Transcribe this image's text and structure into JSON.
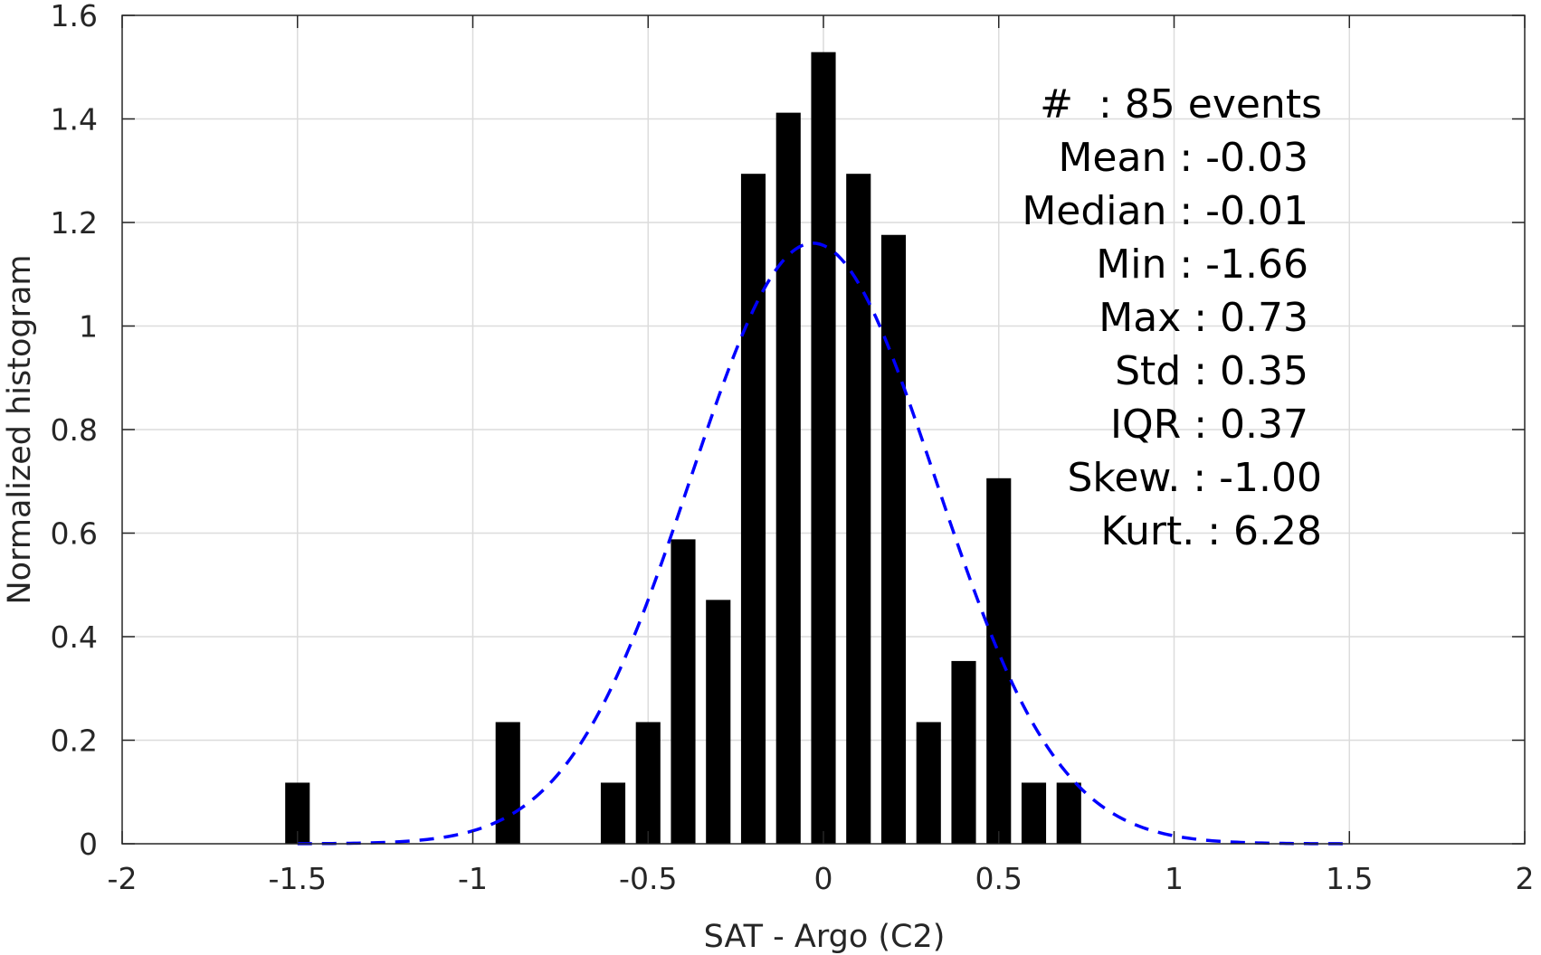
{
  "chart_data": {
    "type": "bar",
    "xlabel": "SAT - Argo (C2)",
    "ylabel": "Normalized histogram",
    "xlim": [
      -2,
      2
    ],
    "ylim": [
      0,
      1.6
    ],
    "xticks": [
      -2,
      -1.5,
      -1,
      -0.5,
      0,
      0.5,
      1,
      1.5,
      2
    ],
    "xtick_labels": [
      "-2",
      "-1.5",
      "-1",
      "-0.5",
      "0",
      "0.5",
      "1",
      "1.5",
      "2"
    ],
    "yticks": [
      0,
      0.2,
      0.4,
      0.6,
      0.8,
      1,
      1.2,
      1.4,
      1.6
    ],
    "ytick_labels": [
      "0",
      "0.2",
      "0.4",
      "0.6",
      "0.8",
      "1",
      "1.2",
      "1.4",
      "1.6"
    ],
    "grid": true,
    "bar_width": 0.07,
    "bars": [
      {
        "x": -1.5,
        "value": 0.118
      },
      {
        "x": -0.9,
        "value": 0.235
      },
      {
        "x": -0.6,
        "value": 0.118
      },
      {
        "x": -0.5,
        "value": 0.235
      },
      {
        "x": -0.4,
        "value": 0.588
      },
      {
        "x": -0.3,
        "value": 0.471
      },
      {
        "x": -0.2,
        "value": 1.294
      },
      {
        "x": -0.1,
        "value": 1.412
      },
      {
        "x": 0.0,
        "value": 1.529
      },
      {
        "x": 0.1,
        "value": 1.294
      },
      {
        "x": 0.2,
        "value": 1.176
      },
      {
        "x": 0.3,
        "value": 0.235
      },
      {
        "x": 0.4,
        "value": 0.353
      },
      {
        "x": 0.5,
        "value": 0.706
      },
      {
        "x": 0.6,
        "value": 0.118
      },
      {
        "x": 0.7,
        "value": 0.118
      }
    ],
    "fit_curve": {
      "type": "normal",
      "mean": -0.03,
      "std": 0.35,
      "peak": 1.16,
      "range": [
        -1.5,
        1.5
      ],
      "style": "dashed",
      "color": "#0000ff"
    },
    "bar_color": "#000000",
    "annotations": [
      "#  : 85 events",
      "Mean : -0.03",
      "Median : -0.01",
      "Min : -1.66",
      "Max : 0.73",
      "Std : 0.35",
      "IQR : 0.37",
      "Skew. : -1.00",
      "Kurt. : 6.28"
    ]
  }
}
